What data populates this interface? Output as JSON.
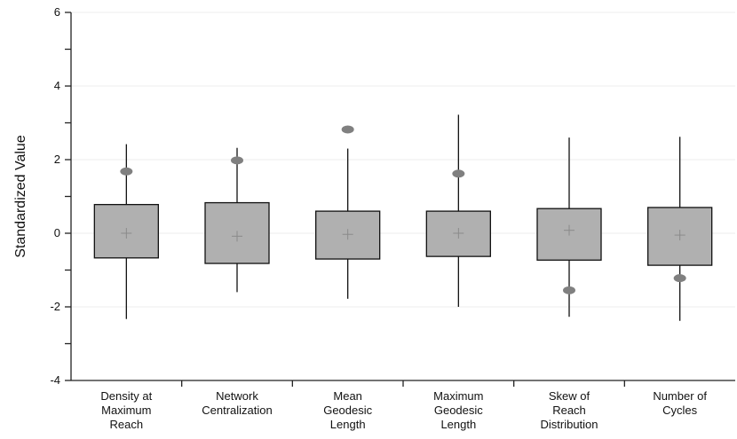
{
  "chart_data": {
    "type": "box",
    "title": "",
    "xlabel": "",
    "ylabel": "Standardized Value",
    "ylim": [
      -4,
      6
    ],
    "yticks": [
      -4,
      -2,
      0,
      2,
      4,
      6
    ],
    "ytick_labels": [
      "-4",
      "-2",
      "0",
      "2",
      "4",
      "6"
    ],
    "grid": "horizontal, faint",
    "box_color": "#b0b0b0",
    "outlier_color": "#808080",
    "categories": [
      [
        "Density at",
        "Maximum",
        "Reach"
      ],
      [
        "Network",
        "Centralization"
      ],
      [
        "Mean",
        "Geodesic",
        "Length"
      ],
      [
        "Maximum",
        "Geodesic",
        "Length"
      ],
      [
        "Skew of",
        "Reach",
        "Distribution"
      ],
      [
        "Number of",
        "Cycles"
      ]
    ],
    "boxes": [
      {
        "whisker_low": -2.33,
        "q1": -0.67,
        "median": 0.0,
        "mean": 0.0,
        "q3": 0.78,
        "whisker_high": 2.42,
        "outliers": [
          1.68
        ]
      },
      {
        "whisker_low": -1.6,
        "q1": -0.82,
        "median": -0.08,
        "mean": -0.08,
        "q3": 0.83,
        "whisker_high": 2.32,
        "outliers": [
          1.98
        ]
      },
      {
        "whisker_low": -1.78,
        "q1": -0.7,
        "median": -0.03,
        "mean": -0.03,
        "q3": 0.6,
        "whisker_high": 2.3,
        "outliers": [
          2.82
        ]
      },
      {
        "whisker_low": -2.0,
        "q1": -0.63,
        "median": 0.0,
        "mean": 0.0,
        "q3": 0.6,
        "whisker_high": 3.22,
        "outliers": [
          1.62
        ]
      },
      {
        "whisker_low": -2.27,
        "q1": -0.73,
        "median": 0.08,
        "mean": 0.08,
        "q3": 0.67,
        "whisker_high": 2.6,
        "outliers": [
          -1.55
        ]
      },
      {
        "whisker_low": -2.38,
        "q1": -0.87,
        "median": -0.05,
        "mean": -0.05,
        "q3": 0.7,
        "whisker_high": 2.62,
        "outliers": [
          -1.22
        ]
      }
    ]
  }
}
